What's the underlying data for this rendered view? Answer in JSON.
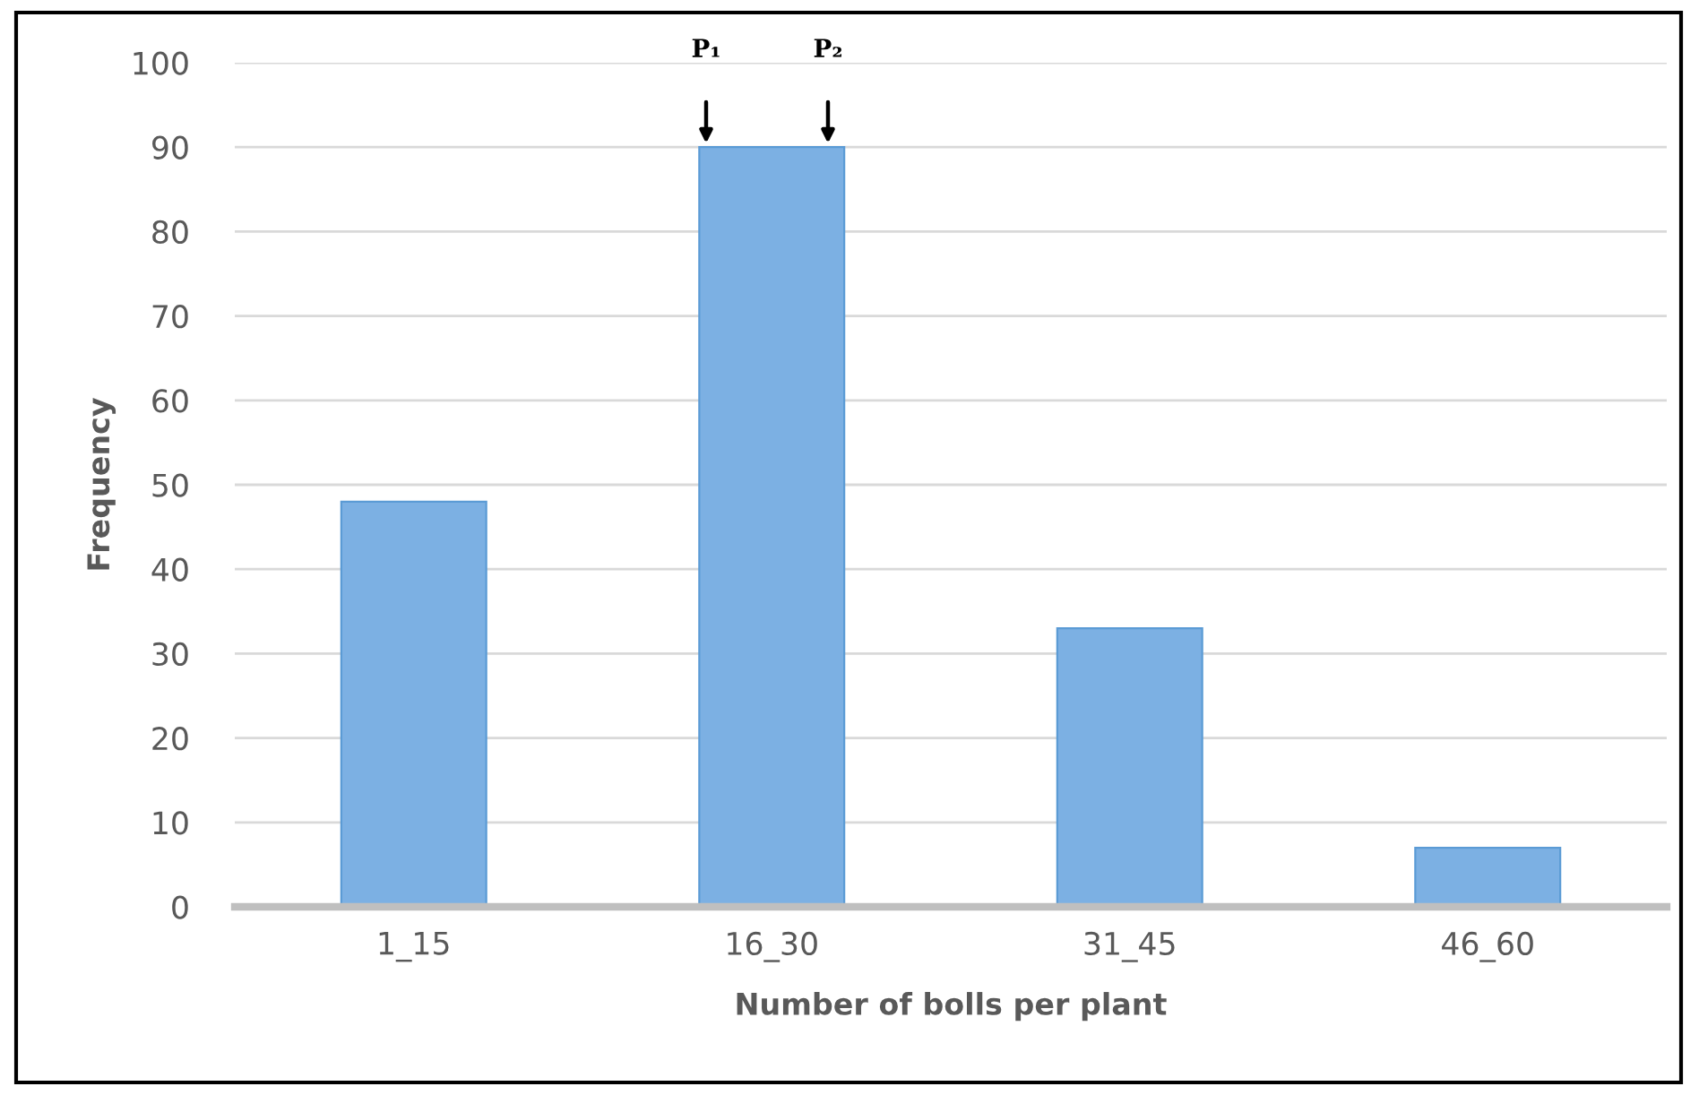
{
  "chart_data": {
    "type": "bar",
    "categories": [
      "1_15",
      "16_30",
      "31_45",
      "46_60"
    ],
    "values": [
      48,
      90,
      33,
      7
    ],
    "color": "#7cb0e3",
    "xlabel": "Number of bolls per plant",
    "ylabel": "Frequency",
    "ylim": [
      0,
      100
    ],
    "yticks": [
      0,
      10,
      20,
      30,
      40,
      50,
      60,
      70,
      80,
      90,
      100
    ],
    "grid": "y",
    "annotations": [
      "P₁",
      "P₂"
    ]
  }
}
